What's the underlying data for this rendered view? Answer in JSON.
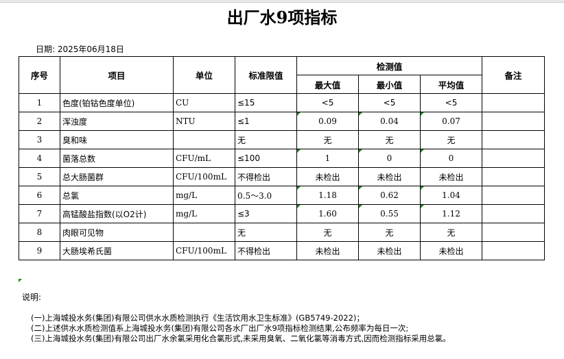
{
  "title": "出厂水9项指标",
  "date_label": "日期: 2025年06月18日",
  "headers": {
    "seq": "序号",
    "item": "项目",
    "unit": "单位",
    "limit": "标准限值",
    "measured": "检测值",
    "max": "最大值",
    "min": "最小值",
    "avg": "平均值",
    "remark": "备注"
  },
  "rows": [
    {
      "seq": "1",
      "item": "色度(铂钴色度单位)",
      "unit": "CU",
      "limit": "≤15",
      "max": "<5",
      "min": "<5",
      "avg": "<5",
      "remark": ""
    },
    {
      "seq": "2",
      "item": "浑浊度",
      "unit": "NTU",
      "limit": "≤1",
      "max": "0.09",
      "min": "0.04",
      "avg": "0.07",
      "remark": ""
    },
    {
      "seq": "3",
      "item": "臭和味",
      "unit": "",
      "limit": "无",
      "max": "无",
      "min": "无",
      "avg": "无",
      "remark": ""
    },
    {
      "seq": "4",
      "item": "菌落总数",
      "unit": "CFU/mL",
      "limit": "≤100",
      "max": "1",
      "min": "0",
      "avg": "0",
      "remark": ""
    },
    {
      "seq": "5",
      "item": "总大肠菌群",
      "unit": "CFU/100mL",
      "limit": "不得检出",
      "max": "未检出",
      "min": "未检出",
      "avg": "未检出",
      "remark": ""
    },
    {
      "seq": "6",
      "item": "总氯",
      "unit": "mg/L",
      "limit": "0.5～3.0",
      "max": "1.18",
      "min": "0.62",
      "avg": "1.04",
      "remark": ""
    },
    {
      "seq": "7",
      "item": "高锰酸盐指数(以O2计)",
      "unit": "mg/L",
      "limit": "≤3",
      "max": "1.60",
      "min": "0.55",
      "avg": "1.12",
      "remark": ""
    },
    {
      "seq": "8",
      "item": "肉眼可见物",
      "unit": "",
      "limit": "无",
      "max": "无",
      "min": "无",
      "avg": "无",
      "remark": ""
    },
    {
      "seq": "9",
      "item": "大肠埃希氏菌",
      "unit": "CFU/100mL",
      "limit": "不得检出",
      "max": "未检出",
      "min": "未检出",
      "avg": "未检出",
      "remark": ""
    }
  ],
  "notes_label": "说明:",
  "notes": [
    "(一)上海城投水务(集团)有限公司供水水质检测执行《生活饮用水卫生标准》(GB5749-2022)；",
    "(二)上述供水水质检测值系上海城投水务(集团)有限公司各水厂出厂水9项指标检测结果,公布频率为每日一次;",
    "(三)上海城投水务(集团)有限公司出厂水余氯采用化合氯形式,未采用臭氧、二氧化氯等消毒方式,因而检测指标采用总氯。"
  ],
  "colors": {
    "cell_marker": "#1a8a1a"
  }
}
